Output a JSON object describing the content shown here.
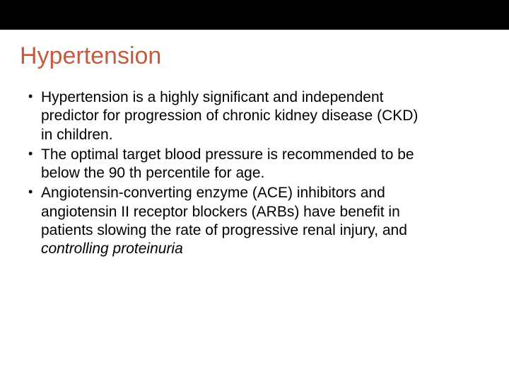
{
  "slide": {
    "title": "Hypertension",
    "title_color": "#c45b3f",
    "title_fontsize": 34,
    "body_fontsize": 21,
    "body_color": "#000000",
    "top_bar_color": "#000000",
    "background_color": "#ffffff",
    "bullets": [
      {
        "lines": [
          "Hypertension is a highly significant and independent",
          "predictor for progression of chronic kidney disease (CKD)",
          "in children."
        ],
        "italic_tail": null
      },
      {
        "lines": [
          "The optimal target blood pressure is recommended to be",
          "below the 90 th percentile for age."
        ],
        "italic_tail": null
      },
      {
        "lines": [
          "Angiotensin-converting enzyme (ACE) inhibitors and",
          "angiotensin II receptor blockers (ARBs) have benefit in",
          "patients slowing the rate of progressive renal injury, and"
        ],
        "italic_tail": "controlling proteinuria"
      }
    ]
  }
}
